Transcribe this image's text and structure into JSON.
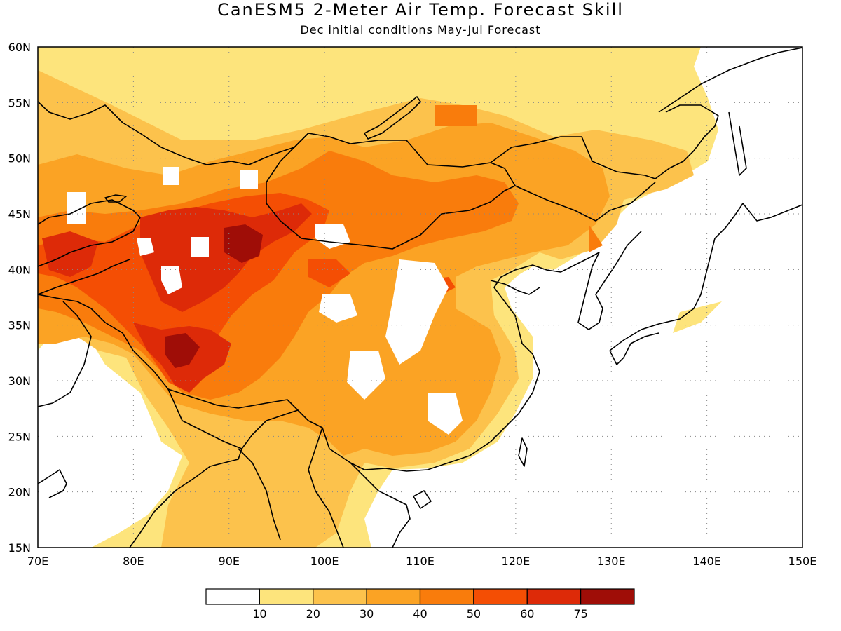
{
  "title": "CanESM5 2-Meter Air Temp. Forecast Skill",
  "subtitle": "Dec initial conditions  May-Jul Forecast",
  "map": {
    "lon_labels": [
      "70E",
      "80E",
      "90E",
      "100E",
      "110E",
      "120E",
      "130E",
      "140E",
      "150E"
    ],
    "lat_labels": [
      "60N",
      "55N",
      "50N",
      "45N",
      "40N",
      "35N",
      "30N",
      "25N",
      "20N",
      "15N"
    ],
    "lon_range": [
      70,
      150
    ],
    "lat_range": [
      15,
      60
    ],
    "grid": true,
    "colors": {
      "c0": "#ffffff",
      "c1": "#fde47c",
      "c2": "#fcc24c",
      "c3": "#fba324",
      "c4": "#f97c0c",
      "c5": "#f44e04",
      "c6": "#dd2a08",
      "c7": "#9f0d07"
    }
  },
  "legend": {
    "labels": [
      "10",
      "20",
      "30",
      "40",
      "50",
      "60",
      "75"
    ],
    "colors": [
      "#ffffff",
      "#fde47c",
      "#fcc24c",
      "#fba324",
      "#f97c0c",
      "#f44e04",
      "#dd2a08",
      "#9f0d07"
    ]
  }
}
